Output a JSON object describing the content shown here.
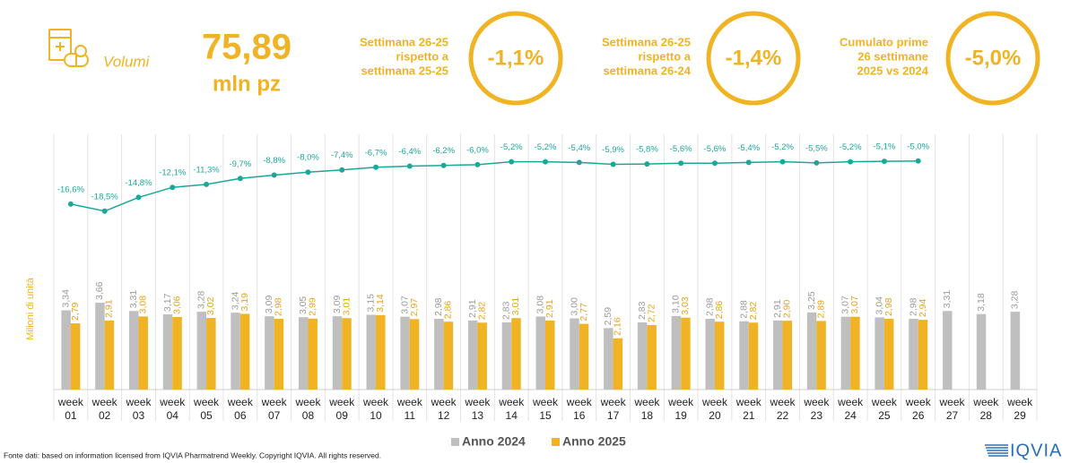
{
  "header": {
    "label": "Volumi",
    "value": "75,89",
    "unit": "mln pz",
    "kpis": [
      {
        "text": [
          "Settimana 26-25",
          "rispetto a",
          "settimana 25-25"
        ],
        "value": "-1,1%"
      },
      {
        "text": [
          "Settimana 26-25",
          "rispetto a",
          "settimana 26-24"
        ],
        "value": "-1,4%"
      },
      {
        "text": [
          "Cumulato prime",
          "26 settimane",
          "2025 vs 2024"
        ],
        "value": "-5,0%"
      }
    ]
  },
  "chart_data": {
    "type": "bar",
    "y_label": "Milioni di unità",
    "categories": [
      "week 01",
      "week 02",
      "week 03",
      "week 04",
      "week 05",
      "week 06",
      "week 07",
      "week 08",
      "week 09",
      "week 10",
      "week 11",
      "week 12",
      "week 13",
      "week 14",
      "week 15",
      "week 16",
      "week 17",
      "week 18",
      "week 19",
      "week 20",
      "week 21",
      "week 22",
      "week 23",
      "week 24",
      "week 25",
      "week 26",
      "week 27",
      "week 28",
      "week 29"
    ],
    "ylim": [
      0,
      4
    ],
    "y2lim": [
      -40,
      0
    ],
    "series": [
      {
        "name": "Anno 2024",
        "type": "bar",
        "color": "#bfbfbf",
        "label_color": "#9a9a9a",
        "values": [
          3.34,
          3.66,
          3.31,
          3.17,
          3.28,
          3.24,
          3.09,
          3.05,
          3.09,
          3.15,
          3.07,
          2.98,
          2.91,
          2.83,
          3.08,
          3.0,
          2.59,
          2.83,
          3.1,
          2.98,
          2.88,
          2.91,
          3.25,
          3.07,
          3.04,
          2.98,
          3.31,
          3.18,
          3.28
        ],
        "value_labels": [
          "3,34",
          "3,66",
          "3,31",
          "3,17",
          "3,28",
          "3,24",
          "3,09",
          "3,05",
          "3,09",
          "3,15",
          "3,07",
          "2,98",
          "2,91",
          "2,83",
          "3,08",
          "3,00",
          "2,59",
          "2,83",
          "3,10",
          "2,98",
          "2,88",
          "2,91",
          "3,25",
          "3,07",
          "3,04",
          "2,98",
          "3,31",
          "3,18",
          "3,28"
        ]
      },
      {
        "name": "Anno 2025",
        "type": "bar",
        "color": "#f0b323",
        "label_color": "#e8a317",
        "values": [
          2.79,
          2.91,
          3.08,
          3.06,
          3.02,
          3.19,
          2.98,
          2.99,
          3.01,
          3.14,
          2.97,
          2.86,
          2.82,
          3.01,
          2.91,
          2.77,
          2.16,
          2.72,
          3.03,
          2.86,
          2.82,
          2.9,
          2.89,
          3.07,
          2.98,
          2.94,
          null,
          null,
          null
        ],
        "value_labels": [
          "2,79",
          "2,91",
          "3,08",
          "3,06",
          "3,02",
          "3,19",
          "2,98",
          "2,99",
          "3,01",
          "3,14",
          "2,97",
          "2,86",
          "2,82",
          "3,01",
          "2,91",
          "2,77",
          "2,16",
          "2,72",
          "3,03",
          "2,86",
          "2,82",
          "2,90",
          "2,89",
          "3,07",
          "2,98",
          "2,94",
          null,
          null,
          null
        ]
      },
      {
        "type": "line",
        "axis": "y2",
        "color": "#1aa89a",
        "values": [
          -16.6,
          -18.5,
          -14.8,
          -12.1,
          -11.3,
          -9.7,
          -8.8,
          -8.0,
          -7.4,
          -6.7,
          -6.4,
          -6.2,
          -6.0,
          -5.2,
          -5.2,
          -5.4,
          -5.9,
          -5.8,
          -5.6,
          -5.6,
          -5.4,
          -5.2,
          -5.5,
          -5.2,
          -5.1,
          -5.0,
          null,
          null,
          null
        ],
        "value_labels": [
          "-16,6%",
          "-18,5%",
          "-14,8%",
          "-12,1%",
          "-11,3%",
          "-9,7%",
          "-8,8%",
          "-8,0%",
          "-7,4%",
          "-6,7%",
          "-6,4%",
          "-6,2%",
          "-6,0%",
          "-5,2%",
          "-5,2%",
          "-5,4%",
          "-5,9%",
          "-5,8%",
          "-5,6%",
          "-5,6%",
          "-5,4%",
          "-5,2%",
          "-5,5%",
          "-5,2%",
          "-5,1%",
          "-5,0%",
          null,
          null,
          null
        ]
      }
    ]
  },
  "footer": {
    "source": "Fonte dati: based on information licensed from IQVIA Pharmatrend Weekly. Copyright IQVIA. All rights reserved.",
    "logo": "IQVIA"
  }
}
